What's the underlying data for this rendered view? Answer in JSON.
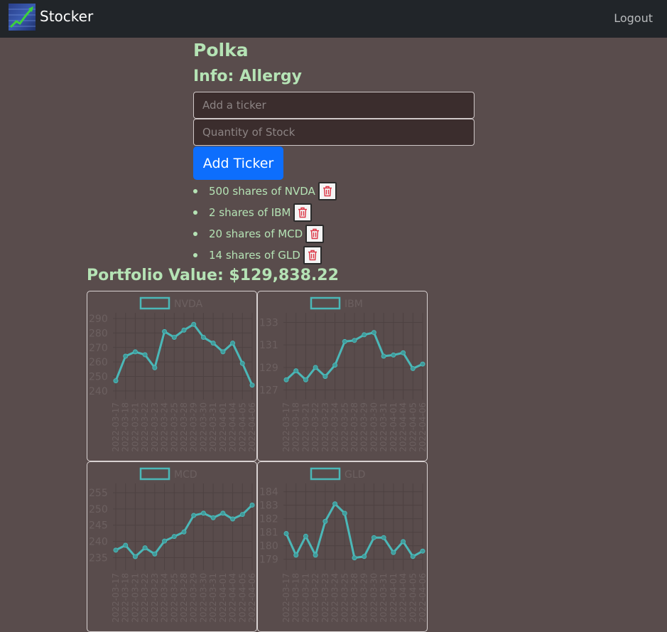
{
  "navbar": {
    "brand": "Stocker",
    "logout": "Logout",
    "logo_icon": "stock-chart-logo"
  },
  "profile": {
    "name": "Polka",
    "info": "Info: Allergy"
  },
  "form": {
    "ticker_placeholder": "Add a ticker",
    "quantity_placeholder": "Quantity of Stock",
    "add_button": "Add Ticker"
  },
  "holdings": [
    {
      "text": "500 shares of NVDA",
      "ticker": "NVDA"
    },
    {
      "text": "2 shares of IBM",
      "ticker": "IBM"
    },
    {
      "text": "20 shares of MCD",
      "ticker": "MCD"
    },
    {
      "text": "14 shares of GLD",
      "ticker": "GLD"
    }
  ],
  "portfolio_value": "Portfolio Value: $129,838.22",
  "colors": {
    "line": "#4bb8b8",
    "text": "#b5e3b5",
    "button": "#0d6efd",
    "trash": "#dc3545"
  },
  "chart_data": [
    {
      "type": "line",
      "title": "",
      "legend": "NVDA",
      "legend_placement": "top",
      "yticks": [
        240,
        250,
        260,
        270,
        280,
        290
      ],
      "ylim": [
        236,
        292
      ],
      "grid": true,
      "x": [
        "2022-03-17",
        "2022-03-18",
        "2022-03-21",
        "2022-03-22",
        "2022-03-23",
        "2022-03-24",
        "2022-03-25",
        "2022-03-28",
        "2022-03-29",
        "2022-03-30",
        "2022-03-31",
        "2022-04-01",
        "2022-04-04",
        "2022-04-05",
        "2022-04-06"
      ],
      "values": [
        247,
        264,
        267,
        265,
        256,
        281,
        277,
        282,
        286,
        277,
        273,
        267,
        273,
        259,
        244
      ]
    },
    {
      "type": "line",
      "title": "",
      "legend": "IBM",
      "legend_placement": "top",
      "yticks": [
        127,
        129,
        131,
        133
      ],
      "ylim": [
        126.4,
        133.6
      ],
      "grid": true,
      "x": [
        "2022-03-17",
        "2022-03-18",
        "2022-03-21",
        "2022-03-22",
        "2022-03-23",
        "2022-03-24",
        "2022-03-25",
        "2022-03-28",
        "2022-03-29",
        "2022-03-30",
        "2022-03-31",
        "2022-04-01",
        "2022-04-04",
        "2022-04-05",
        "2022-04-06"
      ],
      "values": [
        127.9,
        128.7,
        127.9,
        129.0,
        128.2,
        129.2,
        131.3,
        131.4,
        131.9,
        132.1,
        130.0,
        130.1,
        130.3,
        128.9,
        129.3
      ]
    },
    {
      "type": "line",
      "title": "",
      "legend": "MCD",
      "legend_placement": "top",
      "yticks": [
        235,
        240,
        245,
        250,
        255
      ],
      "ylim": [
        232,
        257
      ],
      "grid": true,
      "x": [
        "2022-03-17",
        "2022-03-18",
        "2022-03-21",
        "2022-03-22",
        "2022-03-23",
        "2022-03-24",
        "2022-03-25",
        "2022-03-28",
        "2022-03-29",
        "2022-03-30",
        "2022-03-31",
        "2022-04-01",
        "2022-04-04",
        "2022-04-05",
        "2022-04-06"
      ],
      "values": [
        237.3,
        238.8,
        235.3,
        238.0,
        236.1,
        240.1,
        241.5,
        242.9,
        248.0,
        248.7,
        247.3,
        248.7,
        246.9,
        248.3,
        251.2
      ]
    },
    {
      "type": "line",
      "title": "",
      "legend": "GLD",
      "legend_placement": "top",
      "yticks": [
        179,
        180,
        181,
        182,
        183,
        184
      ],
      "ylim": [
        178.4,
        184.4
      ],
      "grid": true,
      "x": [
        "2022-03-17",
        "2022-03-18",
        "2022-03-21",
        "2022-03-22",
        "2022-03-23",
        "2022-03-24",
        "2022-03-25",
        "2022-03-28",
        "2022-03-29",
        "2022-03-30",
        "2022-03-31",
        "2022-04-01",
        "2022-04-04",
        "2022-04-05",
        "2022-04-06"
      ],
      "values": [
        180.9,
        179.3,
        180.7,
        179.3,
        181.8,
        183.1,
        182.4,
        179.1,
        179.2,
        180.6,
        180.6,
        179.5,
        180.3,
        179.2,
        179.6
      ]
    }
  ]
}
